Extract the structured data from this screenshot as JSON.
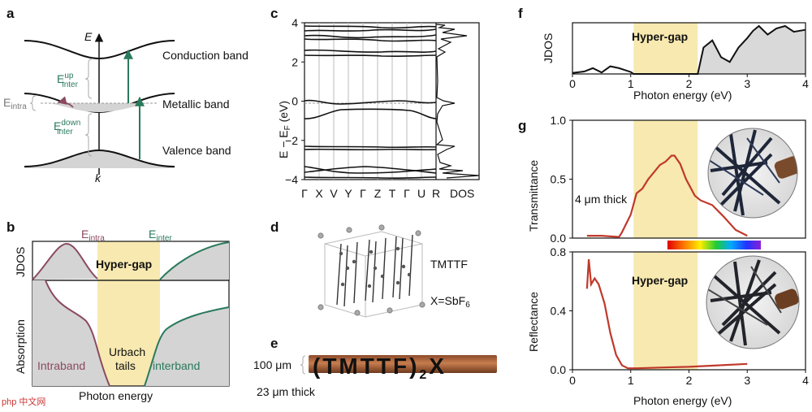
{
  "panel_labels": [
    "a",
    "b",
    "c",
    "d",
    "e",
    "f",
    "g"
  ],
  "panel_a": {
    "axis_e": "E",
    "axis_k": "k",
    "bands": [
      "Conduction band",
      "Metallic band",
      "Valence band"
    ],
    "e_inter_up": {
      "base": "E",
      "sup": "up",
      "sub": "inter"
    },
    "e_inter_down": {
      "base": "E",
      "sup": "down",
      "sub": "inter"
    },
    "e_intra": {
      "base": "E",
      "sub": "intra"
    }
  },
  "panel_b": {
    "e_intra": {
      "base": "E",
      "sub": "intra"
    },
    "e_inter": {
      "base": "E",
      "sub": "inter"
    },
    "hyper_gap": "Hyper-gap",
    "jdos_label": "JDOS",
    "absorption_label": "Absorption",
    "intraband": "Intraband",
    "interband": "interband",
    "urbach_line1": "Urbach",
    "urbach_line2": "tails",
    "xlabel": "Photon energy"
  },
  "panel_c": {
    "ylabel": {
      "main": "E − E",
      "sub": "F",
      "unit": " (eV)"
    },
    "yticks": [
      "4",
      "2",
      "0",
      "−2",
      "−4"
    ],
    "kpoints": [
      "Γ",
      "X",
      "V",
      "Y",
      "Γ",
      "Z",
      "T",
      "Γ",
      "U",
      "R"
    ],
    "dos_label": "DOS"
  },
  "panel_d": {
    "name": "TMTTF",
    "x_label": {
      "main": "X=SbF",
      "sub": "6"
    }
  },
  "panel_e": {
    "formula": {
      "main": "(TMTTF)",
      "sub": "2",
      "tail": "X"
    },
    "width_label": "100 μm",
    "thickness_label": "23 μm thick"
  },
  "panel_f": {
    "ylabel": "JDOS",
    "xlabel": "Photon energy (eV)",
    "xticks": [
      "0",
      "1",
      "2",
      "3",
      "4"
    ],
    "hyper_gap": "Hyper-gap"
  },
  "panel_g": {
    "top_ylabel": "Transmittance",
    "top_yticks": [
      "1.0",
      "0.5",
      "0.0"
    ],
    "thickness": "4 μm thick",
    "bottom_ylabel": "Reflectance",
    "bottom_yticks": [
      "0.8",
      "0.4",
      "0.0"
    ],
    "xticks": [
      "0",
      "1",
      "2",
      "3",
      "4"
    ],
    "xlabel": "Photon energy (eV)",
    "hyper_gap": "Hyper-gap"
  },
  "colors": {
    "green": "#2a7a5c",
    "purple": "#8a4a60",
    "gap_fill": "#f7e9b0",
    "grey_fill": "#d9d9d9",
    "red_curve": "#c0392b",
    "crystal_brown": "#b0663a"
  },
  "chart_data": [
    {
      "panel": "f",
      "type": "area",
      "title": "",
      "xlabel": "Photon energy (eV)",
      "ylabel": "JDOS",
      "xlim": [
        0,
        4
      ],
      "hyper_gap_range": [
        1.05,
        2.15
      ],
      "x": [
        0,
        0.2,
        0.35,
        0.5,
        0.65,
        0.8,
        1.0,
        1.05,
        2.15,
        2.25,
        2.4,
        2.55,
        2.7,
        2.85,
        3.0,
        3.1,
        3.2,
        3.35,
        3.5,
        3.65,
        3.8,
        4.0
      ],
      "y": [
        0.02,
        0.05,
        0.12,
        0.03,
        0.16,
        0.12,
        0.04,
        0.0,
        0.0,
        0.55,
        0.7,
        0.35,
        0.25,
        0.55,
        0.75,
        0.9,
        1.0,
        0.82,
        0.95,
        1.0,
        0.88,
        0.92
      ]
    },
    {
      "panel": "g-top",
      "type": "line",
      "title": "",
      "xlabel": "",
      "ylabel": "Transmittance",
      "xlim": [
        0,
        4
      ],
      "ylim": [
        0,
        1.0
      ],
      "hyper_gap_range": [
        1.05,
        2.15
      ],
      "x": [
        0.25,
        0.5,
        0.8,
        0.85,
        1.0,
        1.1,
        1.2,
        1.3,
        1.4,
        1.5,
        1.6,
        1.7,
        1.75,
        1.85,
        1.95,
        2.1,
        2.2,
        2.4,
        2.6,
        2.8,
        3.0
      ],
      "y": [
        0.02,
        0.02,
        0.01,
        0.05,
        0.2,
        0.38,
        0.42,
        0.5,
        0.56,
        0.62,
        0.65,
        0.7,
        0.7,
        0.63,
        0.5,
        0.36,
        0.32,
        0.28,
        0.18,
        0.07,
        0.02
      ]
    },
    {
      "panel": "g-bottom",
      "type": "line",
      "title": "",
      "xlabel": "Photon energy (eV)",
      "ylabel": "Reflectance",
      "xlim": [
        0,
        4
      ],
      "ylim": [
        0,
        0.8
      ],
      "hyper_gap_range": [
        1.05,
        2.15
      ],
      "x": [
        0.25,
        0.28,
        0.32,
        0.38,
        0.45,
        0.55,
        0.65,
        0.75,
        0.85,
        0.95,
        1.1,
        1.5,
        2.0,
        2.5,
        3.0
      ],
      "y": [
        0.55,
        0.75,
        0.58,
        0.62,
        0.58,
        0.45,
        0.25,
        0.1,
        0.03,
        0.01,
        0.01,
        0.015,
        0.02,
        0.03,
        0.04
      ]
    }
  ]
}
